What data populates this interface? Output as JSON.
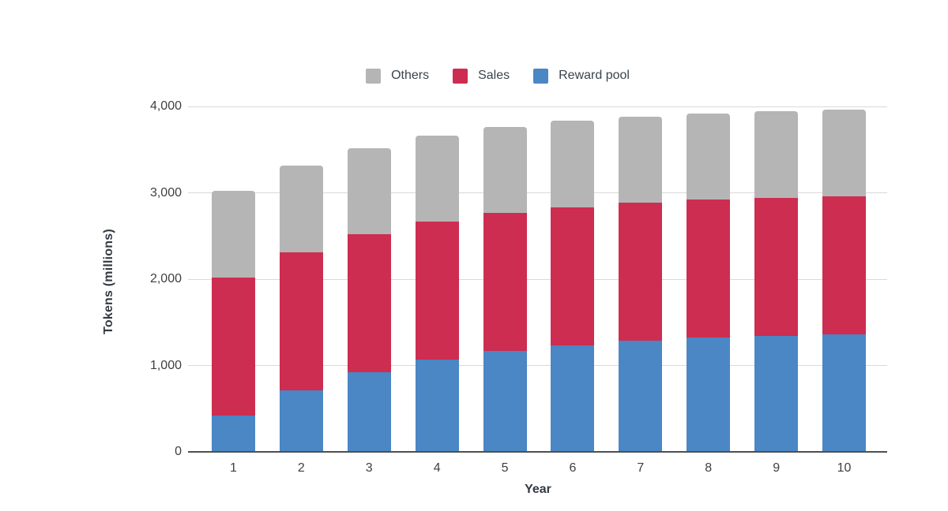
{
  "legend": {
    "items": [
      {
        "label": "Others",
        "color": "#b5b5b5"
      },
      {
        "label": "Sales",
        "color": "#cd2d50"
      },
      {
        "label": "Reward pool",
        "color": "#4b86c5"
      }
    ]
  },
  "chart_data": {
    "type": "bar",
    "stacked": true,
    "title": "",
    "xlabel": "Year",
    "ylabel": "Tokens (millions)",
    "categories": [
      "1",
      "2",
      "3",
      "4",
      "5",
      "6",
      "7",
      "8",
      "9",
      "10"
    ],
    "series": [
      {
        "name": "Reward pool",
        "color": "#4b86c5",
        "values": [
          420,
          715,
          920,
          1065,
          1165,
          1235,
          1285,
          1320,
          1343,
          1360
        ]
      },
      {
        "name": "Sales",
        "color": "#cd2d50",
        "values": [
          1600,
          1600,
          1600,
          1600,
          1600,
          1600,
          1600,
          1600,
          1600,
          1600
        ]
      },
      {
        "name": "Others",
        "color": "#b5b5b5",
        "values": [
          1000,
          1000,
          1000,
          1000,
          1000,
          1000,
          1000,
          1000,
          1000,
          1000
        ]
      }
    ],
    "stack_order_bottom_to_top": [
      "Reward pool",
      "Sales",
      "Others"
    ],
    "legend_order": [
      "Others",
      "Sales",
      "Reward pool"
    ],
    "totals": [
      3020,
      3315,
      3520,
      3665,
      3765,
      3835,
      3885,
      3920,
      3943,
      3960
    ],
    "ylim": [
      0,
      4000
    ],
    "yticks": [
      {
        "value": 0,
        "label": "0"
      },
      {
        "value": 1000,
        "label": "1,000"
      },
      {
        "value": 2000,
        "label": "2,000"
      },
      {
        "value": 3000,
        "label": "3,000"
      },
      {
        "value": 4000,
        "label": "4,000"
      }
    ],
    "grid": true,
    "legend_position": "top"
  },
  "style": {
    "grid_color": "#d9d9d9",
    "axis_color": "#4f4f4f",
    "tick_text_color": "#3f3f3f",
    "axis_title_color": "#333a42",
    "background": "#ffffff"
  }
}
